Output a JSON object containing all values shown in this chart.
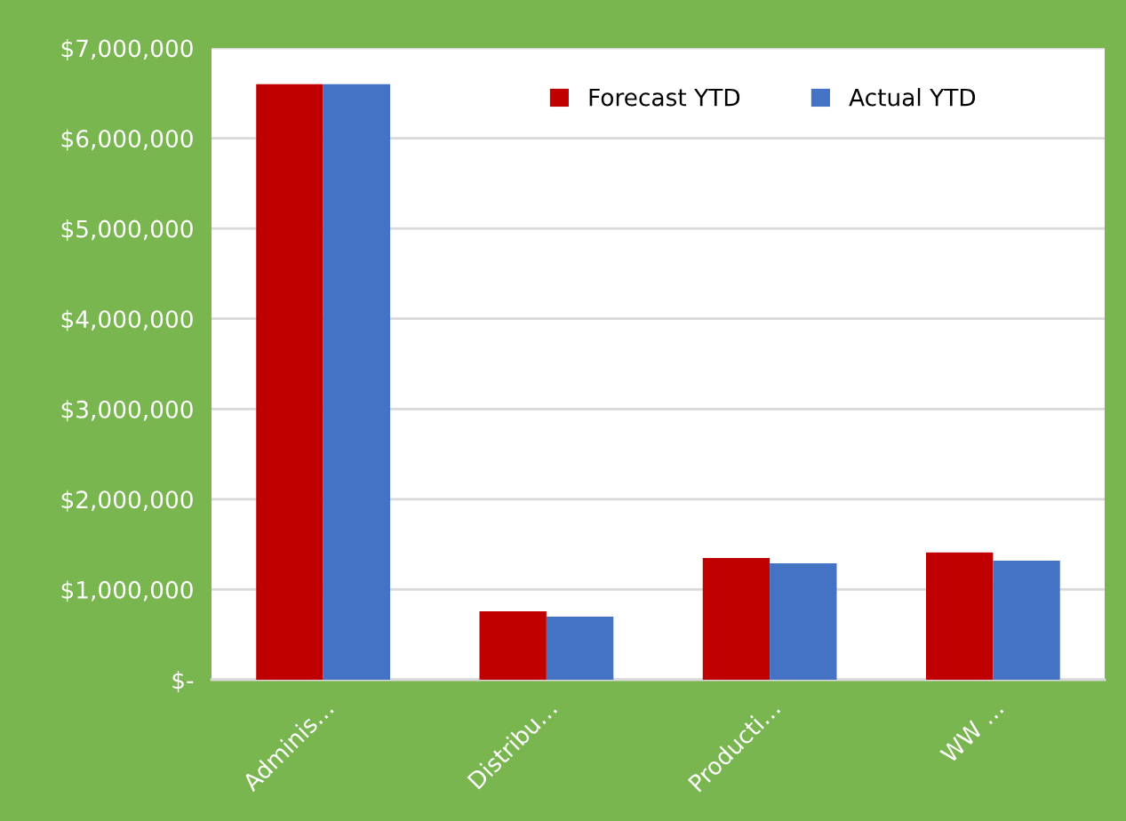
{
  "chart_data": {
    "type": "bar",
    "categories": [
      "Adminis…",
      "Distribu…",
      "Producti…",
      "WW …"
    ],
    "series": [
      {
        "name": "Forecast YTD",
        "color": "#c00000",
        "values": [
          6600000,
          758000,
          1350000,
          1410000
        ]
      },
      {
        "name": "Actual YTD",
        "color": "#4472c4",
        "values": [
          6600000,
          700000,
          1290000,
          1320000
        ]
      }
    ],
    "ylim": [
      0,
      7000000
    ],
    "yticks": [
      {
        "value": 0,
        "label": "$-"
      },
      {
        "value": 1000000,
        "label": "$1,000,000"
      },
      {
        "value": 2000000,
        "label": "$2,000,000"
      },
      {
        "value": 3000000,
        "label": "$3,000,000"
      },
      {
        "value": 4000000,
        "label": "$4,000,000"
      },
      {
        "value": 5000000,
        "label": "$5,000,000"
      },
      {
        "value": 6000000,
        "label": "$6,000,000"
      },
      {
        "value": 7000000,
        "label": "$7,000,000"
      }
    ],
    "grid": "y",
    "legend": "top right"
  }
}
